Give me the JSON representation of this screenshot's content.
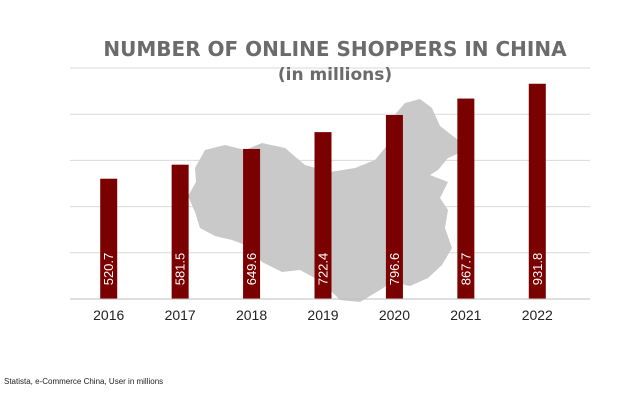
{
  "chart_data": {
    "type": "bar",
    "title": "NUMBER OF ONLINE SHOPPERS IN CHINA",
    "subtitle": "(in millions)",
    "categories": [
      "2016",
      "2017",
      "2018",
      "2019",
      "2020",
      "2021",
      "2022"
    ],
    "values": [
      520.7,
      581.5,
      649.6,
      722.4,
      796.6,
      867.7,
      931.8
    ],
    "ylim": [
      0,
      1000
    ],
    "grid": true,
    "bar_color": "#7b0000",
    "background_map": "china-map"
  },
  "source_note": "Statista, e-Commerce China, User in millions"
}
